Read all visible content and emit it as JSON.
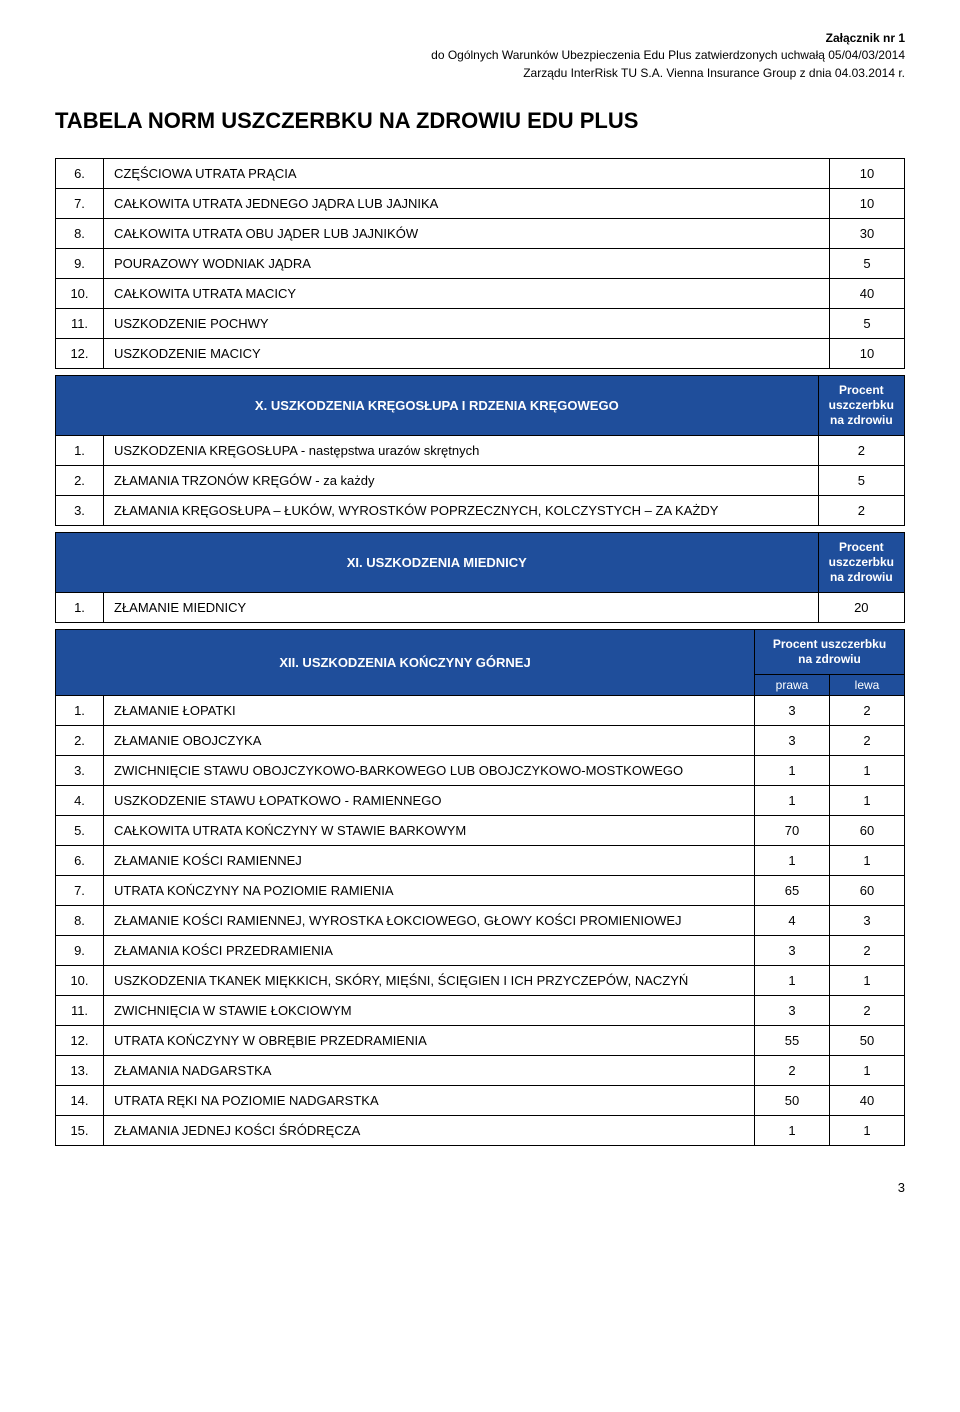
{
  "header": {
    "line1": "Załącznik nr 1",
    "line2": "do Ogólnych Warunków Ubezpieczenia Edu Plus zatwierdzonych uchwałą 05/04/03/2014",
    "line3": "Zarządu InterRisk TU S.A. Vienna Insurance Group z dnia 04.03.2014 r."
  },
  "title": "TABELA NORM USZCZERBKU NA ZDROWIU EDU PLUS",
  "secA": [
    {
      "n": "6.",
      "t": "CZĘŚCIOWA UTRATA PRĄCIA",
      "v": "10"
    },
    {
      "n": "7.",
      "t": "CAŁKOWITA UTRATA JEDNEGO JĄDRA LUB JAJNIKA",
      "v": "10"
    },
    {
      "n": "8.",
      "t": "CAŁKOWITA UTRATA OBU JĄDER LUB JAJNIKÓW",
      "v": "30"
    },
    {
      "n": "9.",
      "t": "POURAZOWY WODNIAK JĄDRA",
      "v": "5"
    },
    {
      "n": "10.",
      "t": "CAŁKOWITA UTRATA MACICY",
      "v": "40"
    },
    {
      "n": "11.",
      "t": "USZKODZENIE POCHWY",
      "v": "5"
    },
    {
      "n": "12.",
      "t": "USZKODZENIE MACICY",
      "v": "10"
    }
  ],
  "sectX": {
    "title": "X. USZKODZENIA KRĘGOSŁUPA I RDZENIA KRĘGOWEGO",
    "right": "Procent uszczerbku na zdrowiu"
  },
  "secX": [
    {
      "n": "1.",
      "t": "USZKODZENIA KRĘGOSŁUPA - następstwa urazów skrętnych",
      "v": "2"
    },
    {
      "n": "2.",
      "t": "ZŁAMANIA TRZONÓW KRĘGÓW  - za każdy",
      "v": "5"
    },
    {
      "n": "3.",
      "t": "ZŁAMANIA KRĘGOSŁUPA – ŁUKÓW, WYROSTKÓW POPRZECZNYCH, KOLCZYSTYCH – ZA KAŻDY",
      "v": "2"
    }
  ],
  "sectXI": {
    "title": "XI. USZKODZENIA MIEDNICY",
    "right": "Procent uszczerbku na zdrowiu"
  },
  "secXI": [
    {
      "n": "1.",
      "t": "ZŁAMANIE MIEDNICY",
      "v": "20"
    }
  ],
  "sectXII": {
    "title": "XII. USZKODZENIA KOŃCZYNY GÓRNEJ",
    "right": "Procent uszczerbku na zdrowiu",
    "sub1": "prawa",
    "sub2": "lewa"
  },
  "secXII": [
    {
      "n": "1.",
      "t": "ZŁAMANIE ŁOPATKI",
      "v1": "3",
      "v2": "2"
    },
    {
      "n": "2.",
      "t": "ZŁAMANIE OBOJCZYKA",
      "v1": "3",
      "v2": "2"
    },
    {
      "n": "3.",
      "t": "ZWICHNIĘCIE STAWU OBOJCZYKOWO-BARKOWEGO LUB OBOJCZYKOWO-MOSTKOWEGO",
      "v1": "1",
      "v2": "1"
    },
    {
      "n": "4.",
      "t": "USZKODZENIE STAWU ŁOPATKOWO - RAMIENNEGO",
      "v1": "1",
      "v2": "1"
    },
    {
      "n": "5.",
      "t": "CAŁKOWITA UTRATA KOŃCZYNY W STAWIE BARKOWYM",
      "v1": "70",
      "v2": "60"
    },
    {
      "n": "6.",
      "t": "ZŁAMANIE KOŚCI RAMIENNEJ",
      "v1": "1",
      "v2": "1"
    },
    {
      "n": "7.",
      "t": "UTRATA KOŃCZYNY NA POZIOMIE  RAMIENIA",
      "v1": "65",
      "v2": "60"
    },
    {
      "n": "8.",
      "t": "ZŁAMANIE KOŚCI RAMIENNEJ, WYROSTKA ŁOKCIOWEGO, GŁOWY KOŚCI PROMIENIOWEJ",
      "v1": "4",
      "v2": "3"
    },
    {
      "n": "9.",
      "t": "ZŁAMANIA KOŚCI PRZEDRAMIENIA",
      "v1": "3",
      "v2": "2"
    },
    {
      "n": "10.",
      "t": "USZKODZENIA  TKANEK MIĘKKICH, SKÓRY, MIĘŚNI, ŚCIĘGIEN I ICH PRZYCZEPÓW, NACZYŃ",
      "v1": "1",
      "v2": "1"
    },
    {
      "n": "11.",
      "t": "ZWICHNIĘCIA W STAWIE  ŁOKCIOWYM",
      "v1": "3",
      "v2": "2"
    },
    {
      "n": "12.",
      "t": "UTRATA KOŃCZYNY W OBRĘBIE PRZEDRAMIENIA",
      "v1": "55",
      "v2": "50"
    },
    {
      "n": "13.",
      "t": "ZŁAMANIA NADGARSTKA",
      "v1": "2",
      "v2": "1"
    },
    {
      "n": "14.",
      "t": "UTRATA RĘKI NA POZIOMIE NADGARSTKA",
      "v1": "50",
      "v2": "40"
    },
    {
      "n": "15.",
      "t": "ZŁAMANIA  JEDNEJ KOŚCI  ŚRÓDRĘCZA",
      "v1": "1",
      "v2": "1"
    }
  ],
  "pageNum": "3"
}
